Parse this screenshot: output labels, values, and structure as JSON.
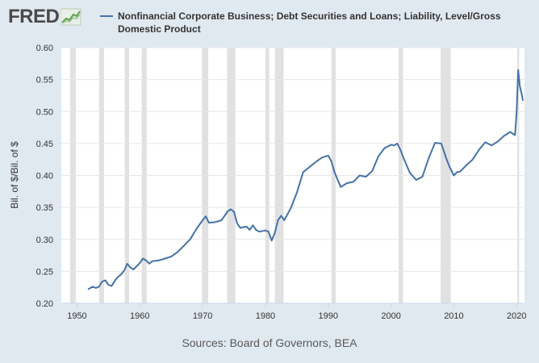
{
  "header": {
    "logo_text": "FRED",
    "logo_icon": "line-chart-icon",
    "legend_label": "Nonfinancial Corporate Business; Debt Securities and Loans; Liability, Level/Gross Domestic Product"
  },
  "footer": {
    "source": "Sources: Board of Governors, BEA"
  },
  "colors": {
    "series": "#4572a7",
    "plot_background": "#ffffff",
    "page_background": "#e1e9f0",
    "recession_band": "#e1e1e1",
    "grid": "#e6e6e6"
  },
  "chart_data": {
    "type": "line",
    "title": "",
    "xlabel": "",
    "ylabel": "Bil. of $/Bil. of $",
    "xlim": [
      1947.5,
      2021.25
    ],
    "ylim": [
      0.2,
      0.6
    ],
    "grid": "horizontal",
    "x_ticks": [
      1950,
      1960,
      1970,
      1980,
      1990,
      2000,
      2010,
      2020
    ],
    "y_ticks": [
      0.2,
      0.25,
      0.3,
      0.35,
      0.4,
      0.45,
      0.5,
      0.55,
      0.6
    ],
    "y_tick_labels": [
      "0.20",
      "0.25",
      "0.30",
      "0.35",
      "0.40",
      "0.45",
      "0.50",
      "0.55",
      "0.60"
    ],
    "recessions": [
      [
        1948.9,
        1949.8
      ],
      [
        1953.5,
        1954.3
      ],
      [
        1957.6,
        1958.3
      ],
      [
        1960.3,
        1961.1
      ],
      [
        1969.9,
        1970.9
      ],
      [
        1973.9,
        1975.2
      ],
      [
        1980.0,
        1980.6
      ],
      [
        1981.5,
        1982.9
      ],
      [
        1990.5,
        1991.2
      ],
      [
        2001.2,
        2001.9
      ],
      [
        2007.9,
        2009.5
      ],
      [
        2020.1,
        2020.4
      ]
    ],
    "series": [
      {
        "name": "Nonfinancial Corporate Business; Debt Securities and Loans; Liability, Level/Gross Domestic Product",
        "x": [
          1951.75,
          1952.5,
          1953.0,
          1953.5,
          1954.0,
          1954.5,
          1955.0,
          1955.5,
          1956.0,
          1956.5,
          1957.0,
          1957.5,
          1958.0,
          1958.5,
          1959.0,
          1959.5,
          1960.0,
          1960.5,
          1961.0,
          1961.5,
          1962.0,
          1963.0,
          1964.0,
          1965.0,
          1966.0,
          1967.0,
          1968.0,
          1969.0,
          1970.0,
          1970.5,
          1971.0,
          1972.0,
          1973.0,
          1974.0,
          1974.5,
          1975.0,
          1975.5,
          1976.0,
          1977.0,
          1977.5,
          1978.0,
          1978.5,
          1979.0,
          1980.0,
          1980.5,
          1981.0,
          1981.5,
          1982.0,
          1982.5,
          1983.0,
          1984.0,
          1985.0,
          1986.0,
          1987.0,
          1988.0,
          1989.0,
          1990.0,
          1990.5,
          1991.0,
          1992.0,
          1993.0,
          1994.0,
          1995.0,
          1996.0,
          1997.0,
          1998.0,
          1999.0,
          2000.0,
          2000.5,
          2001.0,
          2001.5,
          2002.0,
          2003.0,
          2004.0,
          2005.0,
          2006.0,
          2007.0,
          2008.0,
          2008.75,
          2009.25,
          2010.0,
          2010.5,
          2011.0,
          2012.0,
          2013.0,
          2014.0,
          2015.0,
          2016.0,
          2017.0,
          2018.0,
          2019.0,
          2019.75,
          2020.0,
          2020.25,
          2020.5,
          2020.75,
          2021.0
        ],
        "values": [
          0.222,
          0.226,
          0.224,
          0.226,
          0.234,
          0.236,
          0.229,
          0.227,
          0.235,
          0.241,
          0.245,
          0.251,
          0.262,
          0.256,
          0.253,
          0.258,
          0.263,
          0.27,
          0.267,
          0.262,
          0.266,
          0.267,
          0.27,
          0.273,
          0.28,
          0.29,
          0.3,
          0.316,
          0.33,
          0.336,
          0.326,
          0.327,
          0.33,
          0.344,
          0.347,
          0.343,
          0.325,
          0.318,
          0.32,
          0.315,
          0.322,
          0.315,
          0.312,
          0.314,
          0.312,
          0.298,
          0.31,
          0.33,
          0.337,
          0.33,
          0.348,
          0.373,
          0.405,
          0.413,
          0.421,
          0.428,
          0.431,
          0.422,
          0.405,
          0.382,
          0.388,
          0.39,
          0.4,
          0.398,
          0.407,
          0.43,
          0.443,
          0.448,
          0.447,
          0.45,
          0.44,
          0.427,
          0.404,
          0.393,
          0.398,
          0.427,
          0.451,
          0.45,
          0.428,
          0.415,
          0.4,
          0.405,
          0.406,
          0.416,
          0.425,
          0.44,
          0.452,
          0.447,
          0.453,
          0.462,
          0.468,
          0.463,
          0.5,
          0.565,
          0.54,
          0.53,
          0.517
        ]
      }
    ]
  }
}
